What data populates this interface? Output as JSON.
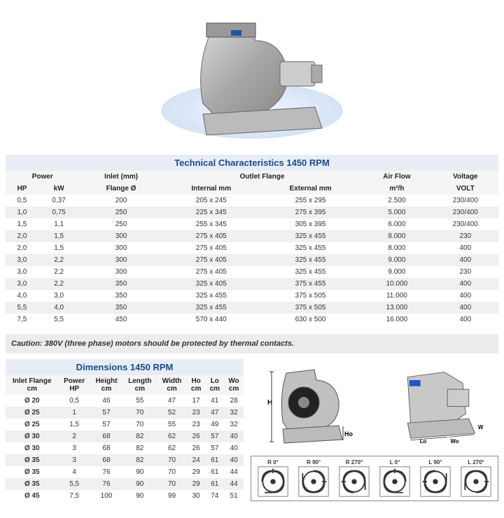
{
  "tech_table": {
    "title": "Technical Characteristics 1450 RPM",
    "group_headers": [
      "Power",
      "Inlet (mm)",
      "Outlet Flange",
      "Air Flow",
      "Voltage"
    ],
    "headers": [
      "HP",
      "kW",
      "Flange Ø",
      "Internal mm",
      "External mm",
      "m³/h",
      "VOLT"
    ],
    "rows": [
      [
        "0,5",
        "0,37",
        "200",
        "205 x 245",
        "255 x 295",
        "2.500",
        "230/400"
      ],
      [
        "1,0",
        "0,75",
        "250",
        "225 x 345",
        "275 x 395",
        "5.000",
        "230/400"
      ],
      [
        "1,5",
        "1,1",
        "250",
        "255 x 345",
        "305 x 395",
        "6.000",
        "230/400"
      ],
      [
        "2,0",
        "1,5",
        "300",
        "275 x 405",
        "325 x 455",
        "8.000",
        "230"
      ],
      [
        "2,0",
        "1,5",
        "300",
        "275 x 405",
        "325 x 455",
        "8.000",
        "400"
      ],
      [
        "3,0",
        "2,2",
        "300",
        "275 x 405",
        "325 x 455",
        "9.000",
        "400"
      ],
      [
        "3,0",
        "2,2",
        "300",
        "275 x 405",
        "325 x 455",
        "9.000",
        "230"
      ],
      [
        "3,0",
        "2,2",
        "350",
        "325 x 405",
        "375 x 455",
        "10.000",
        "400"
      ],
      [
        "4,0",
        "3,0",
        "350",
        "325 x  455",
        "375 x 505",
        "11.000",
        "400"
      ],
      [
        "5,5",
        "4,0",
        "350",
        "325 x 455",
        "375 x 505",
        "13.000",
        "400"
      ],
      [
        "7,5",
        "5,5",
        "450",
        "570 x 440",
        "630 x 500",
        "16.000",
        "400"
      ]
    ]
  },
  "caution_text": "Caution: 380V (three phase) motors should be protected by thermal contacts.",
  "dim_table": {
    "title": "Dimensions 1450 RPM",
    "headers": [
      "Inlet Flange\ncm",
      "Power\nHP",
      "Height\ncm",
      "Length\ncm",
      "Width\ncm",
      "Ho\ncm",
      "Lo\ncm",
      "Wo\ncm"
    ],
    "rows": [
      [
        "Ø 20",
        "0,5",
        "46",
        "55",
        "47",
        "17",
        "41",
        "28"
      ],
      [
        "Ø 25",
        "1",
        "57",
        "70",
        "52",
        "23",
        "47",
        "32"
      ],
      [
        "Ø 25",
        "1,5",
        "57",
        "70",
        "55",
        "23",
        "49",
        "32"
      ],
      [
        "Ø 30",
        "2",
        "68",
        "82",
        "62",
        "26",
        "57",
        "40"
      ],
      [
        "Ø 30",
        "3",
        "68",
        "82",
        "62",
        "26",
        "57",
        "40"
      ],
      [
        "Ø 35",
        "3",
        "68",
        "82",
        "70",
        "24",
        "61",
        "40"
      ],
      [
        "Ø 35",
        "4",
        "76",
        "90",
        "70",
        "29",
        "61",
        "44"
      ],
      [
        "Ø 35",
        "5,5",
        "76",
        "90",
        "70",
        "29",
        "61",
        "44"
      ],
      [
        "Ø 45",
        "7,5",
        "100",
        "90",
        "99",
        "30",
        "74",
        "51"
      ]
    ]
  },
  "dim_labels": {
    "H": "H",
    "Ho": "Ho",
    "Lo": "Lo",
    "Wo": "Wo",
    "W": "W"
  },
  "orientations": [
    "R 0°",
    "R 90°",
    "R 270°",
    "L 0°",
    "L 90°",
    "L 270°"
  ],
  "colors": {
    "title_color": "#1a4b8c",
    "title_bg": "#e8edf5",
    "row_alt": "#f0f0f0",
    "caution_bg": "#ececec",
    "metal": "#b8b8b8",
    "metal_dark": "#888888"
  }
}
